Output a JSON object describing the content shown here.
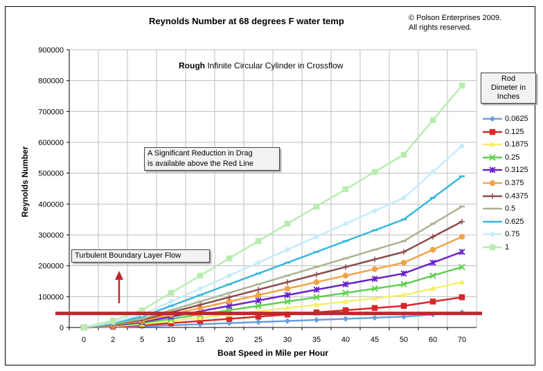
{
  "chart_data": {
    "type": "line",
    "title": "Reynolds Number at 68 degrees F water temp",
    "subtitle_bold": "Rough",
    "subtitle_rest": " Infinite Circular Cylinder in Crossflow",
    "copyright_line1": "© Polson Enterprises 2009.",
    "copyright_line2": "All rights reserved.",
    "xlabel": "Boat Speed in Mile per Hour",
    "ylabel": "Reynolds Number",
    "ylim": [
      0,
      900000
    ],
    "yticks": [
      "0",
      "100000",
      "200000",
      "300000",
      "400000",
      "500000",
      "600000",
      "700000",
      "800000",
      "900000"
    ],
    "categories": [
      "0",
      "2",
      "5",
      "10",
      "15",
      "20",
      "25",
      "30",
      "35",
      "40",
      "45",
      "50",
      "60",
      "70"
    ],
    "legend_title": [
      "Rod",
      "Dimeter in",
      "Inches"
    ],
    "legend_placement": "right",
    "grid": true,
    "annotation_drag_line1": "A Significant Reduction in Drag",
    "annotation_drag_line2": "is available above the Red Line",
    "annotation_turbulent": "Turbulent Boundary Layer Flow",
    "threshold_value": 50000,
    "threshold_color": "#c0272d",
    "series": [
      {
        "name": "0.0625",
        "color": "#6a9fe0",
        "marker": "diamond",
        "values": [
          0,
          1400,
          3500,
          7000,
          10500,
          14000,
          17500,
          21000,
          24500,
          28000,
          31500,
          35000,
          42000,
          49000
        ]
      },
      {
        "name": "0.125",
        "color": "#d62828",
        "marker": "square",
        "values": [
          0,
          2800,
          7000,
          14000,
          21000,
          28000,
          35000,
          42000,
          49000,
          56000,
          63000,
          70000,
          84000,
          98000
        ]
      },
      {
        "name": "0.1875",
        "color": "#f5ef6a",
        "marker": "triangle",
        "values": [
          0,
          4200,
          10500,
          21000,
          31500,
          42000,
          52500,
          63000,
          73500,
          84000,
          94500,
          105000,
          126000,
          147000
        ]
      },
      {
        "name": "0.25",
        "color": "#5fcf4f",
        "marker": "x",
        "values": [
          0,
          5600,
          14000,
          28000,
          42000,
          56000,
          70000,
          84000,
          98000,
          112000,
          126000,
          140000,
          168000,
          196000
        ]
      },
      {
        "name": "0.3125",
        "color": "#6a22c8",
        "marker": "star",
        "values": [
          0,
          7000,
          17500,
          35000,
          52500,
          70000,
          87500,
          105000,
          122500,
          140000,
          157500,
          175000,
          210000,
          245000
        ]
      },
      {
        "name": "0.375",
        "color": "#f2a34a",
        "marker": "circle",
        "values": [
          0,
          8400,
          21000,
          42000,
          63000,
          84000,
          105000,
          126000,
          147000,
          168000,
          189000,
          210000,
          252000,
          294000
        ]
      },
      {
        "name": "0.4375",
        "color": "#8b4a4a",
        "marker": "plus",
        "values": [
          0,
          9800,
          24500,
          49000,
          73500,
          98000,
          122500,
          147000,
          171500,
          196000,
          220500,
          245000,
          294000,
          343000
        ]
      },
      {
        "name": "0.5",
        "color": "#a7b591",
        "marker": "dash",
        "values": [
          0,
          11200,
          28000,
          56000,
          84000,
          112000,
          140000,
          168000,
          196000,
          224000,
          252000,
          280000,
          336000,
          392000
        ]
      },
      {
        "name": "0.625",
        "color": "#36b8e0",
        "marker": "dash",
        "values": [
          0,
          14000,
          35000,
          70000,
          105000,
          140000,
          175000,
          210000,
          245000,
          280000,
          315000,
          350000,
          420000,
          490000
        ]
      },
      {
        "name": "0.75",
        "color": "#c4ecfb",
        "marker": "diamond",
        "values": [
          0,
          16800,
          42000,
          84000,
          126000,
          168000,
          210000,
          252000,
          294000,
          336000,
          378000,
          420000,
          504000,
          588000
        ]
      },
      {
        "name": "1",
        "color": "#b8edb0",
        "marker": "square",
        "values": [
          0,
          22400,
          56000,
          112000,
          168000,
          224000,
          280000,
          336000,
          392000,
          448000,
          504000,
          560000,
          672000,
          784000
        ]
      }
    ]
  }
}
